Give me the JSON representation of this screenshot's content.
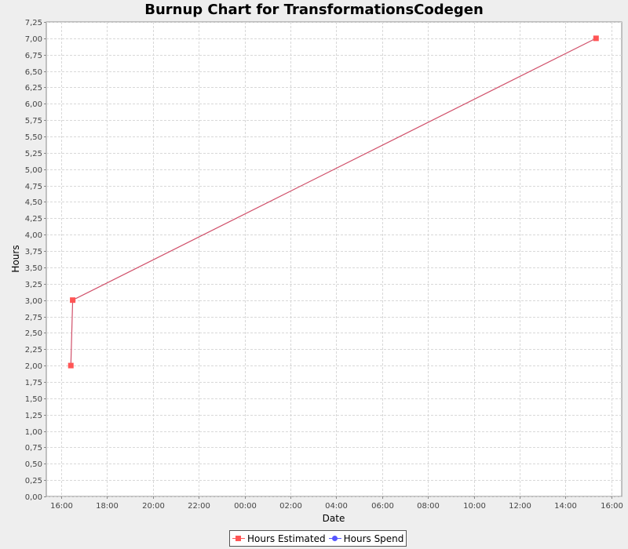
{
  "chart_data": {
    "type": "line",
    "title": "Burnup Chart for TransformationsCodegen",
    "xlabel": "Date",
    "ylabel": "Hours",
    "x_tick_labels": [
      "16:00",
      "18:00",
      "20:00",
      "22:00",
      "00:00",
      "02:00",
      "04:00",
      "06:00",
      "08:00",
      "10:00",
      "12:00",
      "14:00",
      "16:00"
    ],
    "x_tick_hours": [
      0,
      2,
      4,
      6,
      8,
      10,
      12,
      14,
      16,
      18,
      20,
      22,
      24
    ],
    "xlim_hours": [
      -0.65,
      24.45
    ],
    "ylim": [
      0,
      7.25
    ],
    "y_tick_step": 0.25,
    "grid": true,
    "legend_position": "bottom",
    "series": [
      {
        "name": "Hours Estimated",
        "color": "#ff5555",
        "line_color": "#d0506a",
        "marker": "square",
        "points": [
          {
            "x": "16:25",
            "y": 2.0
          },
          {
            "x": "16:30",
            "y": 3.0
          },
          {
            "x": "15:20",
            "y": 7.0
          }
        ],
        "x_hours": [
          0.42,
          0.5,
          23.33
        ]
      },
      {
        "name": "Hours Spend",
        "color": "#5555ff",
        "marker": "circle",
        "points": [],
        "x_hours": []
      }
    ]
  }
}
